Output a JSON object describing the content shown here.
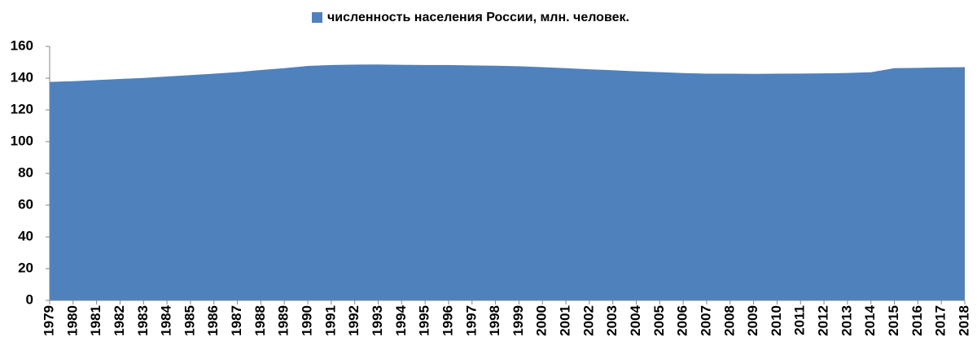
{
  "chart_data": {
    "type": "area",
    "categories": [
      "1979",
      "1980",
      "1981",
      "1982",
      "1983",
      "1984",
      "1985",
      "1986",
      "1987",
      "1988",
      "1989",
      "1990",
      "1991",
      "1992",
      "1993",
      "1994",
      "1995",
      "1996",
      "1997",
      "1998",
      "1999",
      "2000",
      "2001",
      "2002",
      "2003",
      "2004",
      "2005",
      "2006",
      "2007",
      "2008",
      "2009",
      "2010",
      "2011",
      "2012",
      "2013",
      "2014",
      "2015",
      "2016",
      "2017",
      "2018"
    ],
    "series": [
      {
        "name": "численность населения России, млн. человек.",
        "color": "#4f81bd",
        "values": [
          137.6,
          138.1,
          138.8,
          139.5,
          140.1,
          141.0,
          141.9,
          142.8,
          143.8,
          145.1,
          146.3,
          147.7,
          148.3,
          148.5,
          148.6,
          148.4,
          148.3,
          148.3,
          148.0,
          147.8,
          147.5,
          146.9,
          146.3,
          145.6,
          145.0,
          144.3,
          143.8,
          143.2,
          142.8,
          142.8,
          142.7,
          142.8,
          142.9,
          143.0,
          143.3,
          143.7,
          146.3,
          146.5,
          146.8,
          146.9
        ]
      }
    ],
    "ylim": [
      0,
      160
    ],
    "yticks": [
      0,
      20,
      40,
      60,
      80,
      100,
      120,
      140,
      160
    ],
    "grid": false,
    "legend": "top"
  }
}
